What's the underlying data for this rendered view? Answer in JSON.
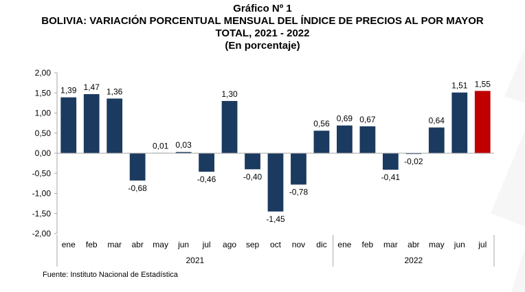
{
  "header": {
    "title": "Gráfico Nº 1",
    "subtitle_line1": "BOLIVIA: VARIACIÓN PORCENTUAL MENSUAL DEL ÍNDICE DE PRECIOS AL POR MAYOR",
    "subtitle_line2": "TOTAL, 2021 - 2022",
    "subtitle_line3": "(En porcentaje)"
  },
  "source": "Fuente: Instituto Nacional de Estadística",
  "chart_data": {
    "type": "bar",
    "categories": [
      "ene",
      "feb",
      "mar",
      "abr",
      "may",
      "jun",
      "jul",
      "ago",
      "sep",
      "oct",
      "nov",
      "dic",
      "ene",
      "feb",
      "mar",
      "abr",
      "may",
      "jun",
      "jul"
    ],
    "values": [
      1.39,
      1.47,
      1.36,
      -0.68,
      0.01,
      0.03,
      -0.46,
      1.3,
      -0.4,
      -1.45,
      -0.78,
      0.56,
      0.69,
      0.67,
      -0.41,
      -0.02,
      0.64,
      1.51,
      1.55
    ],
    "value_labels": [
      "1,39",
      "1,47",
      "1,36",
      "-0,68",
      "0,01",
      "0,03",
      "-0,46",
      "1,30",
      "-0,40",
      "-1,45",
      "-0,78",
      "0,56",
      "0,69",
      "0,67",
      "-0,41",
      "-0,02",
      "0,64",
      "1,51",
      "1,55"
    ],
    "year_groups": [
      {
        "label": "2021",
        "count": 12
      },
      {
        "label": "2022",
        "count": 7
      }
    ],
    "ylim": [
      -2.0,
      2.0
    ],
    "yticks": [
      2.0,
      1.5,
      1.0,
      0.5,
      0.0,
      -0.5,
      -1.0,
      -1.5,
      -2.0
    ],
    "ytick_labels": [
      "2,00",
      "1,50",
      "1,00",
      "0,50",
      "0,00",
      "-0,50",
      "-1,00",
      "-1,50",
      "-2,00"
    ],
    "grid": false,
    "legend": "none",
    "colors": {
      "bar": "#1b3a5f",
      "highlight": "#c00000",
      "axis": "#a6a6a6"
    },
    "highlight_index": 18
  }
}
